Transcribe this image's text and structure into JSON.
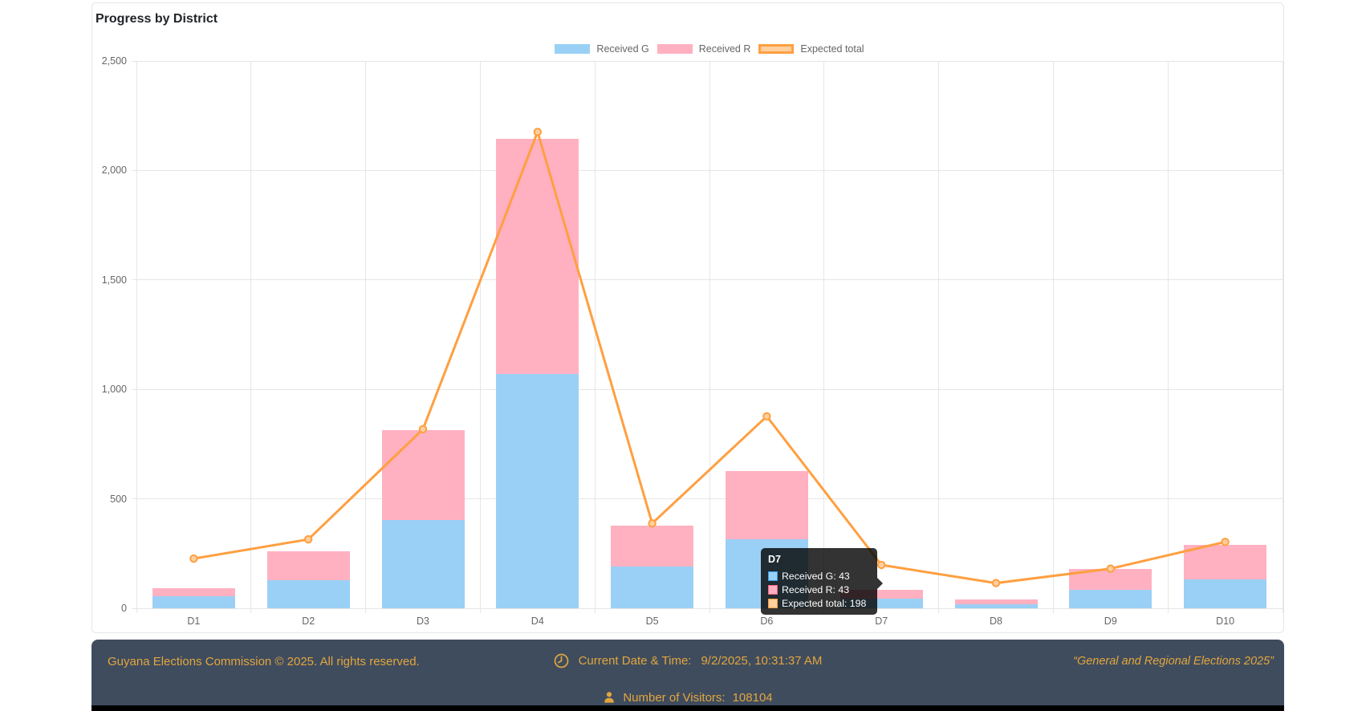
{
  "chart_data": {
    "type": "bar",
    "stacked": true,
    "title": "Progress by District",
    "categories": [
      "D1",
      "D2",
      "D3",
      "D4",
      "D5",
      "D6",
      "D7",
      "D8",
      "D9",
      "D10"
    ],
    "series": [
      {
        "name": "Received G",
        "type": "bar",
        "color": "#9AD0F5",
        "border_color": "#36A2EB",
        "values": [
          55,
          128,
          403,
          1070,
          189,
          315,
          43,
          19,
          85,
          132
        ]
      },
      {
        "name": "Received R",
        "type": "bar",
        "color": "#FFB1C1",
        "border_color": "#FF6384",
        "values": [
          37,
          133,
          410,
          1073,
          188,
          311,
          43,
          22,
          93,
          157
        ]
      },
      {
        "name": "Expected total",
        "type": "line",
        "color": "#FF9F40",
        "fill_color": "#FFCF9F",
        "values": [
          227,
          315,
          818,
          2176,
          388,
          877,
          198,
          115,
          181,
          303
        ]
      }
    ],
    "ylim": [
      0,
      2500
    ],
    "yticks": [
      "0",
      "500",
      "1,000",
      "1,500",
      "2,000",
      "2,500"
    ],
    "grid": true,
    "legend_position": "top-center",
    "xlabel": "",
    "ylabel": ""
  },
  "tooltip": {
    "title": "D7",
    "rows": [
      {
        "text": "Received G: 43",
        "swatch_fill": "#9AD0F5",
        "swatch_border": "#36A2EB"
      },
      {
        "text": "Received R: 43",
        "swatch_fill": "#FFB1C1",
        "swatch_border": "#FF6384"
      },
      {
        "text": "Expected total: 198",
        "swatch_fill": "#FFCF9F",
        "swatch_border": "#FF9F40"
      }
    ]
  },
  "footer": {
    "copyright": "Guyana Elections Commission © 2025. All rights reserved.",
    "datetime_label": "Current Date & Time:",
    "datetime_value": "9/2/2025, 10:31:37 AM",
    "visitors_label": "Number of Visitors:",
    "visitors_value": "108104",
    "slogan": "“General and Regional Elections 2025”",
    "accent_color": "#E2A63D",
    "background_color": "#3F4C5E"
  }
}
